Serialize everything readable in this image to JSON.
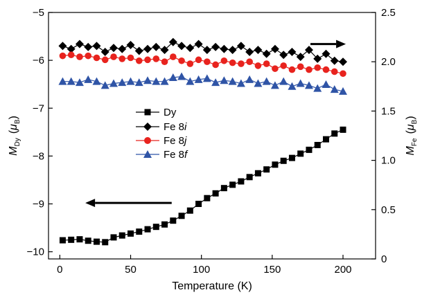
{
  "chart_data": {
    "type": "scatter",
    "title": "",
    "xlabel": "Temperature (K)",
    "ylabel_left": {
      "main": "M",
      "sub": "Dy",
      "unit_open": "(",
      "unit_mu": "μ",
      "unit_sub": "B",
      "unit_close": ")"
    },
    "ylabel_right": {
      "main": "M",
      "sub": "Fe",
      "unit_open": "(",
      "unit_mu": "μ",
      "unit_sub": "B",
      "unit_close": ")"
    },
    "xlim": [
      -8,
      223
    ],
    "ylim_left": [
      -10.15,
      -5
    ],
    "ylim_right": [
      0,
      2.5
    ],
    "xticks": [
      0,
      50,
      100,
      150,
      200
    ],
    "xtick_labels": [
      "0",
      "50",
      "100",
      "150",
      "200"
    ],
    "yticks_left": [
      -5,
      -6,
      -7,
      -8,
      -9,
      -10
    ],
    "ytick_labels_left": [
      "−5",
      "−6",
      "−7",
      "−8",
      "−9",
      "−10"
    ],
    "yticks_right": [
      0,
      0.5,
      1.0,
      1.5,
      2.0,
      2.5
    ],
    "ytick_labels_right": [
      "0",
      "0.5",
      "1.0",
      "1.5",
      "2.0",
      "2.5"
    ],
    "grid": false,
    "legend_position": "center-left",
    "legend": [
      {
        "prefix": "Dy",
        "italic": ""
      },
      {
        "prefix": "Fe 8",
        "italic": "i"
      },
      {
        "prefix": "Fe 8",
        "italic": "j"
      },
      {
        "prefix": "Fe 8",
        "italic": "f"
      }
    ],
    "series": [
      {
        "axis": "left",
        "marker": "square",
        "color": "#000000",
        "x": [
          2,
          8,
          14,
          20,
          26,
          32,
          38,
          44,
          50,
          56,
          62,
          68,
          74,
          80,
          86,
          92,
          98,
          104,
          110,
          116,
          122,
          128,
          134,
          140,
          146,
          152,
          158,
          164,
          170,
          176,
          182,
          188,
          194,
          200
        ],
        "y": [
          -9.76,
          -9.75,
          -9.74,
          -9.77,
          -9.79,
          -9.8,
          -9.7,
          -9.66,
          -9.62,
          -9.58,
          -9.53,
          -9.48,
          -9.43,
          -9.35,
          -9.25,
          -9.14,
          -9.0,
          -8.88,
          -8.78,
          -8.67,
          -8.6,
          -8.53,
          -8.44,
          -8.36,
          -8.28,
          -8.18,
          -8.1,
          -8.04,
          -7.95,
          -7.87,
          -7.77,
          -7.65,
          -7.53,
          -7.45
        ]
      },
      {
        "axis": "right",
        "marker": "diamond",
        "color": "#000000",
        "x": [
          2,
          8,
          14,
          20,
          26,
          32,
          38,
          44,
          50,
          56,
          62,
          68,
          74,
          80,
          86,
          92,
          98,
          104,
          110,
          116,
          122,
          128,
          134,
          140,
          146,
          152,
          158,
          164,
          170,
          176,
          182,
          188,
          194,
          200
        ],
        "y": [
          2.16,
          2.13,
          2.18,
          2.15,
          2.16,
          2.1,
          2.14,
          2.13,
          2.17,
          2.11,
          2.13,
          2.15,
          2.12,
          2.2,
          2.16,
          2.14,
          2.18,
          2.12,
          2.15,
          2.13,
          2.12,
          2.16,
          2.1,
          2.12,
          2.08,
          2.13,
          2.07,
          2.1,
          2.05,
          2.12,
          2.03,
          2.08,
          2.01,
          2.0
        ]
      },
      {
        "axis": "right",
        "marker": "circle",
        "color": "#e8231e",
        "x": [
          2,
          8,
          14,
          20,
          26,
          32,
          38,
          44,
          50,
          56,
          62,
          68,
          74,
          80,
          86,
          92,
          98,
          104,
          110,
          116,
          122,
          128,
          134,
          140,
          146,
          152,
          158,
          164,
          170,
          176,
          182,
          188,
          194,
          200
        ],
        "y": [
          2.06,
          2.07,
          2.05,
          2.06,
          2.04,
          2.02,
          2.05,
          2.03,
          2.04,
          2.01,
          2.02,
          2.03,
          2.0,
          2.05,
          2.01,
          1.98,
          2.02,
          2.0,
          1.97,
          2.01,
          1.99,
          1.98,
          2.0,
          1.96,
          1.98,
          1.93,
          1.96,
          1.92,
          1.95,
          1.92,
          1.94,
          1.92,
          1.9,
          1.88
        ]
      },
      {
        "axis": "right",
        "marker": "triangle",
        "color": "#2f54a6",
        "x": [
          2,
          8,
          14,
          20,
          26,
          32,
          38,
          44,
          50,
          56,
          62,
          68,
          74,
          80,
          86,
          92,
          98,
          104,
          110,
          116,
          122,
          128,
          134,
          140,
          146,
          152,
          158,
          164,
          170,
          176,
          182,
          188,
          194,
          200
        ],
        "y": [
          1.8,
          1.8,
          1.79,
          1.82,
          1.8,
          1.76,
          1.78,
          1.79,
          1.8,
          1.79,
          1.81,
          1.8,
          1.8,
          1.84,
          1.85,
          1.8,
          1.82,
          1.83,
          1.79,
          1.81,
          1.8,
          1.78,
          1.82,
          1.78,
          1.8,
          1.76,
          1.8,
          1.75,
          1.78,
          1.76,
          1.73,
          1.77,
          1.72,
          1.7
        ]
      }
    ],
    "annotations": [
      {
        "type": "arrow",
        "direction": "right",
        "axis": "right",
        "x_from": 177,
        "x_to": 202,
        "y": 2.18
      },
      {
        "type": "arrow",
        "direction": "left",
        "axis": "left",
        "x_from": 79,
        "x_to": 18,
        "y": -8.98
      }
    ]
  }
}
